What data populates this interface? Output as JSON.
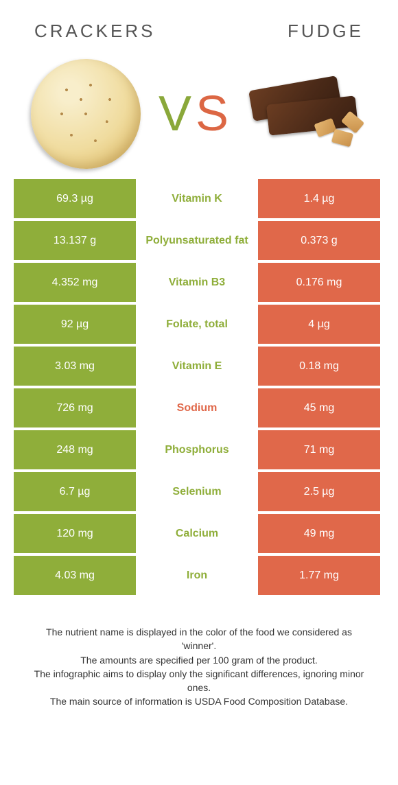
{
  "colors": {
    "green": "#8fae3a",
    "orange": "#e0684a",
    "mid_green": "#8fae3a",
    "mid_orange": "#e0684a"
  },
  "header": {
    "left_title": "Crackers",
    "right_title": "Fudge",
    "vs_v": "V",
    "vs_s": "S"
  },
  "rows": [
    {
      "left": "69.3 µg",
      "label": "Vitamin K",
      "right": "1.4 µg",
      "winner": "green"
    },
    {
      "left": "13.137 g",
      "label": "Polyunsaturated fat",
      "right": "0.373 g",
      "winner": "green"
    },
    {
      "left": "4.352 mg",
      "label": "Vitamin B3",
      "right": "0.176 mg",
      "winner": "green"
    },
    {
      "left": "92 µg",
      "label": "Folate, total",
      "right": "4 µg",
      "winner": "green"
    },
    {
      "left": "3.03 mg",
      "label": "Vitamin E",
      "right": "0.18 mg",
      "winner": "green"
    },
    {
      "left": "726 mg",
      "label": "Sodium",
      "right": "45 mg",
      "winner": "orange"
    },
    {
      "left": "248 mg",
      "label": "Phosphorus",
      "right": "71 mg",
      "winner": "green"
    },
    {
      "left": "6.7 µg",
      "label": "Selenium",
      "right": "2.5 µg",
      "winner": "green"
    },
    {
      "left": "120 mg",
      "label": "Calcium",
      "right": "49 mg",
      "winner": "green"
    },
    {
      "left": "4.03 mg",
      "label": "Iron",
      "right": "1.77 mg",
      "winner": "green"
    }
  ],
  "footer": {
    "line1": "The nutrient name is displayed in the color of the food we considered as 'winner'.",
    "line2": "The amounts are specified per 100 gram of the product.",
    "line3": "The infographic aims to display only the significant differences, ignoring minor ones.",
    "line4": "The main source of information is USDA Food Composition Database."
  }
}
